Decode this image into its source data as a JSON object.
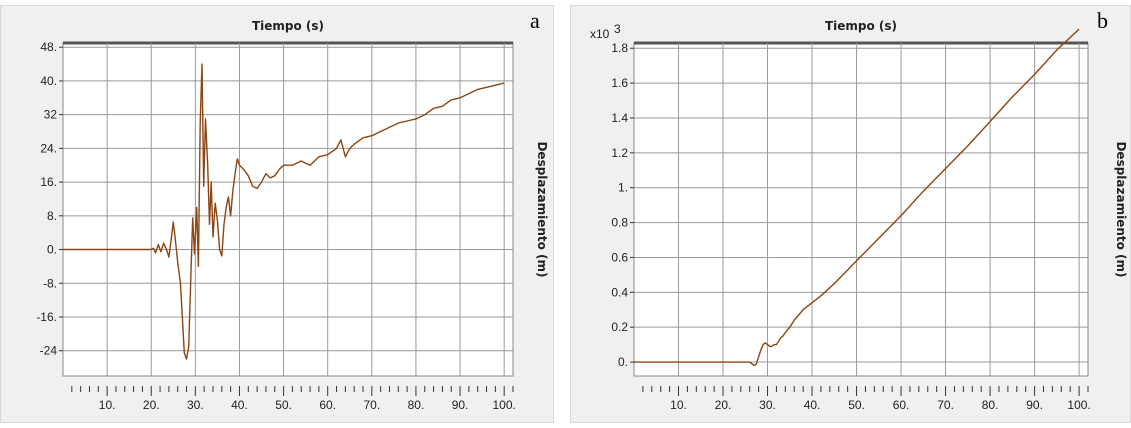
{
  "panels": [
    {
      "letter": "a",
      "chart_data": {
        "type": "line",
        "title": "Tiempo (s)",
        "xlabel": "",
        "ylabel": "Desplazamiento (m)",
        "multiplier_label": "",
        "xlim": [
          0,
          102
        ],
        "ylim": [
          -30,
          49
        ],
        "xticks": [
          10,
          20,
          30,
          40,
          50,
          60,
          70,
          80,
          90,
          100
        ],
        "xtick_labels": [
          "10.",
          "20.",
          "30.",
          "40.",
          "50.",
          "60.",
          "70.",
          "80.",
          "90.",
          "100."
        ],
        "yticks": [
          48,
          40,
          32,
          24,
          16,
          8,
          0,
          -8,
          -16,
          -24
        ],
        "ytick_labels": [
          "48.",
          "40.",
          "32",
          "24.",
          "16.",
          "8.",
          "0.",
          "-8.",
          "-16.",
          "-24"
        ],
        "grid": true,
        "series_color": "#8b4513",
        "series": [
          {
            "x": [
              0,
              20,
              20.5,
              21,
              21.6,
              22.2,
              22.8,
              23.4,
              24,
              24.6,
              25,
              25.5,
              26,
              26.6,
              27,
              27.5,
              28,
              28.5,
              29,
              29.4,
              29.8,
              30.3,
              30.7,
              31.1,
              31.5,
              31.9,
              32.3,
              32.8,
              33.2,
              33.6,
              34,
              34.5,
              35,
              35.5,
              36,
              36.5,
              37,
              37.5,
              38,
              38.5,
              39,
              39.5,
              40,
              41,
              42,
              43,
              44,
              45,
              46,
              47,
              48,
              49,
              50,
              52,
              54,
              56,
              58,
              60,
              62,
              63,
              64,
              65,
              66,
              68,
              70,
              72,
              74,
              76,
              78,
              80,
              82,
              84,
              86,
              88,
              90,
              92,
              94,
              96,
              98,
              100
            ],
            "y": [
              0,
              0,
              0.3,
              -0.8,
              1.2,
              -0.5,
              1.5,
              0.2,
              -1.8,
              3,
              6.5,
              2,
              -3,
              -8,
              -15,
              -24.5,
              -26,
              -23,
              -6,
              7.5,
              -1,
              10,
              -4,
              30,
              44,
              15,
              31,
              20,
              6,
              16,
              3,
              11,
              7,
              0,
              -1.5,
              6,
              10,
              12.5,
              8,
              14,
              18,
              21.5,
              20,
              19,
              17.5,
              15,
              14.5,
              16,
              18,
              17,
              17.5,
              19,
              20,
              20,
              21,
              20,
              22,
              22.5,
              24,
              26,
              22,
              24,
              25,
              26.5,
              27,
              28,
              29,
              30,
              30.5,
              31,
              32,
              33.5,
              34,
              35.5,
              36,
              37,
              38,
              38.5,
              39,
              39.5
            ]
          }
        ]
      }
    },
    {
      "letter": "b",
      "chart_data": {
        "type": "line",
        "title": "Tiempo (s)",
        "xlabel": "",
        "ylabel": "Desplazamiento (m)",
        "multiplier_label": "x10",
        "multiplier_exponent": "3",
        "xlim": [
          0,
          102
        ],
        "ylim": [
          -0.08,
          1.83
        ],
        "xticks": [
          10,
          20,
          30,
          40,
          50,
          60,
          70,
          80,
          90,
          100
        ],
        "xtick_labels": [
          "10.",
          "20.",
          "30.",
          "40.",
          "50.",
          "60.",
          "70.",
          "80.",
          "90.",
          "100."
        ],
        "yticks": [
          1.8,
          1.6,
          1.4,
          1.2,
          1,
          0.8,
          0.6,
          0.4,
          0.2,
          0
        ],
        "ytick_labels": [
          "1.8",
          "1.6",
          "1.4",
          "1.2",
          "1.",
          "0.8",
          "0.6",
          "0.4",
          "0.2",
          "0."
        ],
        "grid": true,
        "series_color": "#8b4513",
        "series": [
          {
            "x": [
              0,
              26,
              26.5,
              27,
              27.5,
              28,
              28.5,
              29,
              29.5,
              30,
              30.5,
              31,
              31.5,
              32,
              32.5,
              33,
              33.5,
              34,
              35,
              36,
              37,
              38,
              40,
              42,
              45,
              50,
              55,
              60,
              65,
              70,
              75,
              80,
              85,
              90,
              95,
              100
            ],
            "y": [
              0,
              0,
              -0.01,
              -0.02,
              -0.01,
              0.03,
              0.07,
              0.1,
              0.11,
              0.1,
              0.09,
              0.09,
              0.1,
              0.1,
              0.12,
              0.14,
              0.15,
              0.17,
              0.2,
              0.24,
              0.27,
              0.3,
              0.34,
              0.38,
              0.45,
              0.58,
              0.71,
              0.84,
              0.98,
              1.11,
              1.24,
              1.38,
              1.52,
              1.65,
              1.79,
              1.91
            ]
          }
        ]
      }
    }
  ]
}
